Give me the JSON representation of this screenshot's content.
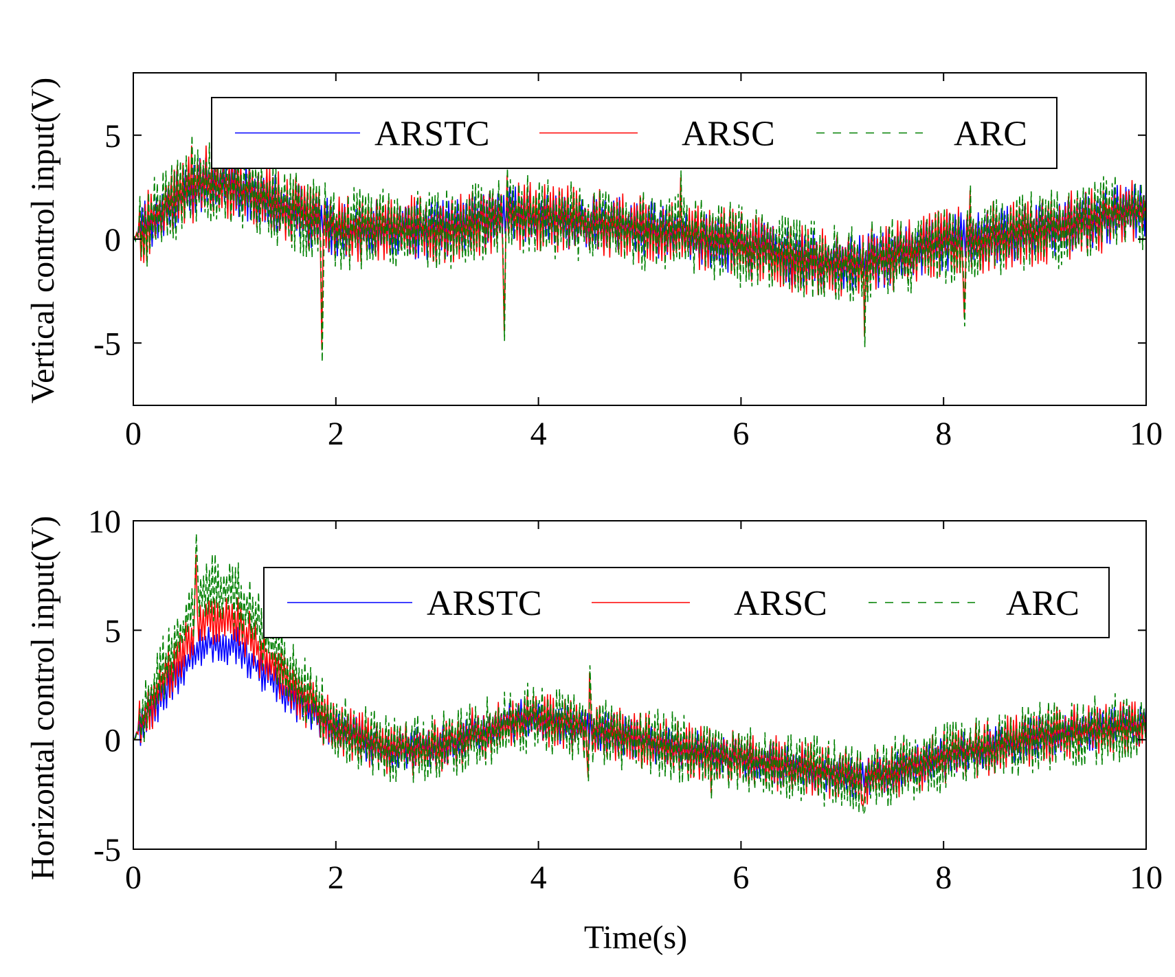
{
  "figure": {
    "xlabel": "Time(s)"
  },
  "colors": {
    "ARSTC": "#0000ff",
    "ARSC": "#ff0000",
    "ARC": "#008000"
  },
  "chart_data": [
    {
      "type": "line",
      "name": "vertical",
      "ylabel": "Vertical control input(V)",
      "xlim": [
        0,
        10
      ],
      "ylim": [
        -8,
        8
      ],
      "xticks": [
        0,
        2,
        4,
        6,
        8,
        10
      ],
      "yticks": [
        -5,
        0,
        5
      ],
      "xtick_labels": [
        "0",
        "2",
        "4",
        "6",
        "8",
        "10"
      ],
      "ytick_labels": [
        "-5",
        "0",
        "5"
      ],
      "legend": [
        "ARSTC",
        "ARSC",
        "ARC"
      ],
      "legend_location": "top",
      "series": [
        {
          "name": "ARSTC",
          "style": "solid",
          "amp_scale": 0.7
        },
        {
          "name": "ARSC",
          "style": "solid",
          "amp_scale": 0.85
        },
        {
          "name": "ARC",
          "style": "dashed",
          "amp_scale": 1.0
        }
      ],
      "trend": {
        "x": [
          0,
          0.3,
          0.7,
          1.0,
          1.5,
          2.0,
          3.0,
          3.7,
          4.5,
          5.5,
          6.5,
          7.2,
          8.0,
          9.0,
          10.0
        ],
        "y": [
          0,
          1.5,
          2.8,
          2.5,
          1.5,
          0.5,
          0.4,
          1.2,
          0.8,
          0.2,
          -0.9,
          -1.2,
          -0.2,
          0.4,
          1.5
        ]
      },
      "noise_amplitude": 1.5,
      "spikes": [
        {
          "x": 1.86,
          "y": -5.9
        },
        {
          "x": 3.65,
          "y": -4.9
        },
        {
          "x": 3.68,
          "y": 3.4
        },
        {
          "x": 5.4,
          "y": 3.3
        },
        {
          "x": 7.22,
          "y": -5.2
        },
        {
          "x": 8.25,
          "y": 2.6
        },
        {
          "x": 8.2,
          "y": -4.2
        },
        {
          "x": 0.57,
          "y": 5.0
        }
      ]
    },
    {
      "type": "line",
      "name": "horizontal",
      "ylabel": "Horizontal control input(V)",
      "xlim": [
        0,
        10
      ],
      "ylim": [
        -5,
        10
      ],
      "xticks": [
        0,
        2,
        4,
        6,
        8,
        10
      ],
      "yticks": [
        -5,
        0,
        5,
        10
      ],
      "xtick_labels": [
        "0",
        "2",
        "4",
        "6",
        "8",
        "10"
      ],
      "ytick_labels": [
        "-5",
        "0",
        "5",
        "10"
      ],
      "legend": [
        "ARSTC",
        "ARSC",
        "ARC"
      ],
      "legend_location": "top-right",
      "series": [
        {
          "name": "ARSTC",
          "style": "solid",
          "amp_scale": 0.6
        },
        {
          "name": "ARSC",
          "style": "solid",
          "amp_scale": 0.8
        },
        {
          "name": "ARC",
          "style": "dashed",
          "amp_scale": 1.0
        }
      ],
      "trend": {
        "x": [
          0,
          0.3,
          0.7,
          1.0,
          1.5,
          2.0,
          2.5,
          3.0,
          3.9,
          4.5,
          5.5,
          6.5,
          7.2,
          8.0,
          9.0,
          10.0
        ],
        "y": [
          0,
          3.0,
          6.2,
          6.0,
          3.0,
          0.5,
          -0.5,
          -0.3,
          1.0,
          0.5,
          -0.5,
          -1.2,
          -1.8,
          -0.8,
          0.2,
          0.7
        ]
      },
      "peak_gain": {
        "ARSTC": 0.72,
        "ARSC": 0.9,
        "ARC": 1.12
      },
      "noise_amplitude": 1.2,
      "spikes": [
        {
          "x": 0.62,
          "y": 9.4
        },
        {
          "x": 4.5,
          "y": 3.4
        },
        {
          "x": 4.48,
          "y": -1.9
        },
        {
          "x": 7.2,
          "y": -3.4
        },
        {
          "x": 5.7,
          "y": -2.7
        }
      ]
    }
  ]
}
